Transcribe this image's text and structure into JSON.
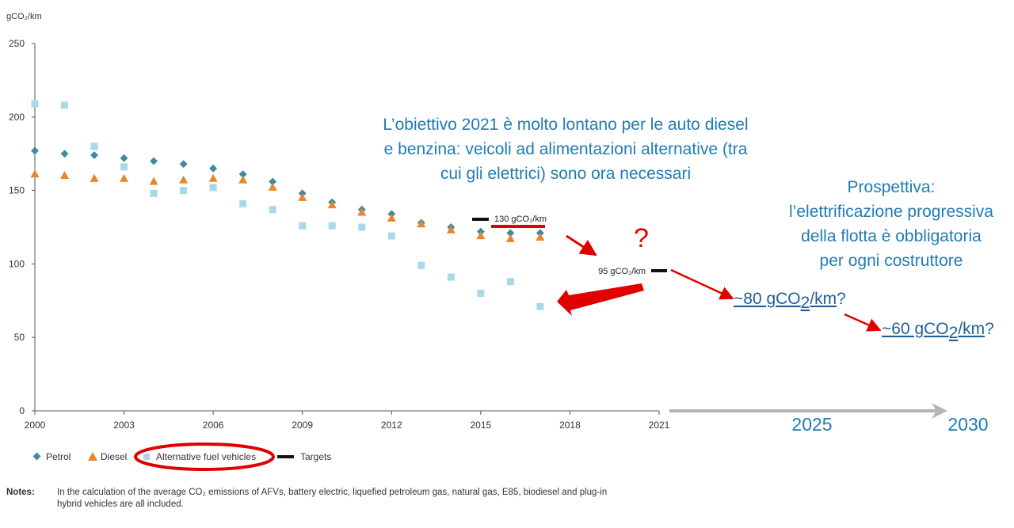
{
  "chart_data": {
    "type": "scatter",
    "ylabel": "gCO₂/km",
    "ylim": [
      0,
      250
    ],
    "xlim": [
      2000,
      2021
    ],
    "y_ticks": [
      "0",
      "50",
      "100",
      "150",
      "200",
      "250"
    ],
    "x_ticks": [
      "2000",
      "2003",
      "2006",
      "2009",
      "2012",
      "2015",
      "2018",
      "2021"
    ],
    "series": [
      {
        "name": "Petrol",
        "color": "#3f8a9e",
        "marker": "diamond",
        "points": [
          [
            2000,
            177
          ],
          [
            2001,
            175
          ],
          [
            2002,
            174
          ],
          [
            2003,
            172
          ],
          [
            2004,
            170
          ],
          [
            2005,
            168
          ],
          [
            2006,
            165
          ],
          [
            2007,
            161
          ],
          [
            2008,
            156
          ],
          [
            2009,
            148
          ],
          [
            2010,
            142
          ],
          [
            2011,
            137
          ],
          [
            2012,
            134
          ],
          [
            2013,
            128
          ],
          [
            2014,
            125
          ],
          [
            2015,
            122
          ],
          [
            2016,
            121
          ],
          [
            2017,
            121
          ]
        ]
      },
      {
        "name": "Diesel",
        "color": "#e8852e",
        "marker": "triangle",
        "points": [
          [
            2000,
            161
          ],
          [
            2001,
            160
          ],
          [
            2002,
            158
          ],
          [
            2003,
            158
          ],
          [
            2004,
            156
          ],
          [
            2005,
            157
          ],
          [
            2006,
            158
          ],
          [
            2007,
            157
          ],
          [
            2008,
            152
          ],
          [
            2009,
            145
          ],
          [
            2010,
            140
          ],
          [
            2011,
            135
          ],
          [
            2012,
            131
          ],
          [
            2013,
            127
          ],
          [
            2014,
            123
          ],
          [
            2015,
            119
          ],
          [
            2016,
            117
          ],
          [
            2017,
            118
          ]
        ]
      },
      {
        "name": "Alternative fuel vehicles",
        "color": "#a9d9e8",
        "marker": "square",
        "points": [
          [
            2000,
            209
          ],
          [
            2001,
            208
          ],
          [
            2002,
            180
          ],
          [
            2003,
            166
          ],
          [
            2004,
            148
          ],
          [
            2005,
            150
          ],
          [
            2006,
            152
          ],
          [
            2007,
            141
          ],
          [
            2008,
            137
          ],
          [
            2009,
            126
          ],
          [
            2010,
            126
          ],
          [
            2011,
            125
          ],
          [
            2012,
            119
          ],
          [
            2013,
            99
          ],
          [
            2014,
            91
          ],
          [
            2015,
            80
          ],
          [
            2016,
            88
          ],
          [
            2017,
            71
          ]
        ]
      }
    ],
    "targets": [
      {
        "name": "Targets",
        "value": 130,
        "label": "130 gCO₂/km",
        "year": 2015
      },
      {
        "value": 95,
        "label": "95 gCO₂/km",
        "year": 2021
      }
    ],
    "legend": {
      "placement": "bottom-left",
      "items": [
        "Petrol",
        "Diesel",
        "Alternative fuel vehicles",
        "Targets"
      ]
    }
  },
  "annotations": {
    "headline": [
      "L’obiettivo 2021 è molto lontano per le auto diesel",
      "e benzina: veicoli ad alimentazioni alternative (tra",
      "cui gli elettrici) sono ora necessari"
    ],
    "outlook": [
      "Prospettiva:",
      "l’elettrificazione progressiva",
      "della flotta è obbligatoria",
      "per ogni costruttore"
    ],
    "projection_2025": {
      "pre": "~80 gCO",
      "sub": "2",
      "post": "/km",
      "q": "?"
    },
    "projection_2030": {
      "pre": "~60 gCO",
      "sub": "2",
      "post": "/km",
      "q": "?"
    },
    "future_years": [
      "2025",
      "2030"
    ],
    "question_mark": "?",
    "accent_color": "#e00000"
  },
  "notes": {
    "label": "Notes:",
    "line1": "In the calculation of the average CO₂ emissions of AFVs, battery electric, liquefied petroleum gas, natural gas, E85, biodiesel and plug-in",
    "line2": "hybrid vehicles are all included."
  }
}
